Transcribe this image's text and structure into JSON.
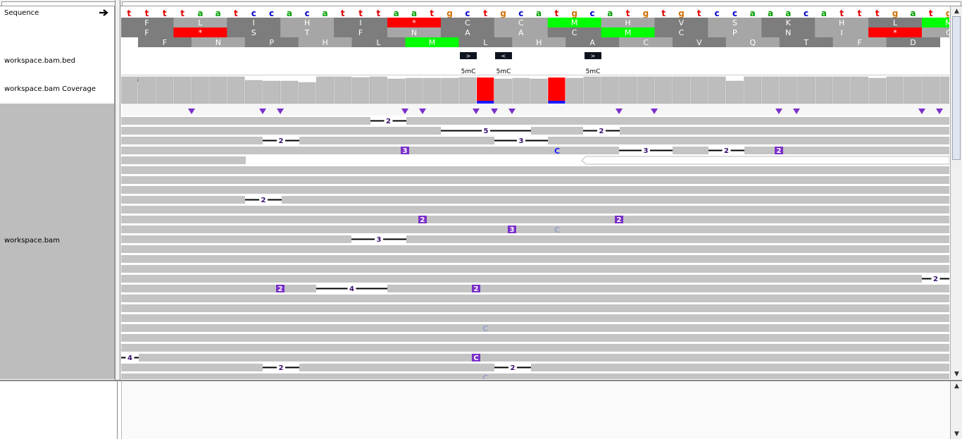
{
  "tracks": {
    "sequence_label": "Sequence",
    "bed_label": "workspace.bam.bed",
    "coverage_label": "workspace.bam Coverage",
    "bam_label": "workspace.bam",
    "coverage_range": "[0 - 58]"
  },
  "sequence": {
    "bases": "ttttaatccacatttaatgctgcatgcatgtgtccaaacatttgatg",
    "base_colors": {
      "a": "#00a000",
      "t": "#e00000",
      "c": "#0000c8",
      "g": "#d17105"
    }
  },
  "translation": {
    "frame1": [
      "F",
      "L",
      "I",
      "H",
      "I",
      "*",
      "C",
      "C",
      "M",
      "H",
      "V",
      "S",
      "K",
      "H",
      "L",
      "M"
    ],
    "frame2": [
      "F",
      "*",
      "S",
      "T",
      "F",
      "N",
      "A",
      "A",
      "C",
      "M",
      "C",
      "P",
      "N",
      "I",
      "*",
      "C"
    ],
    "frame3": [
      "F",
      "N",
      "P",
      "H",
      "L",
      "M",
      "L",
      "H",
      "A",
      "C",
      "V",
      "Q",
      "T",
      "F",
      "D"
    ],
    "stop_color": "#ff0000",
    "met_color": "#00ff00"
  },
  "bed_features": [
    {
      "label": "5mC",
      "strand": ">"
    },
    {
      "label": "5mC",
      "strand": "<"
    },
    {
      "label": "5mC",
      "strand": ">"
    }
  ],
  "reads": {
    "insertion_labels": [
      "2",
      "5",
      "2",
      "2",
      "3",
      "3",
      "C",
      "3",
      "2",
      "2",
      "2",
      "3",
      "2",
      "2",
      "C",
      "3",
      "2",
      "2",
      "4",
      "2",
      "C",
      "4",
      "2",
      "2",
      "2",
      "C",
      "3",
      "C",
      "3"
    ]
  },
  "colors": {
    "read_gray": "#c4c4c4",
    "insertion_purple": "#7a30c8",
    "mismatch_red": "#ff0000",
    "mismatch_blue": "#1a1aff"
  },
  "icons": {
    "strand_arrow": "right-arrow-icon"
  }
}
